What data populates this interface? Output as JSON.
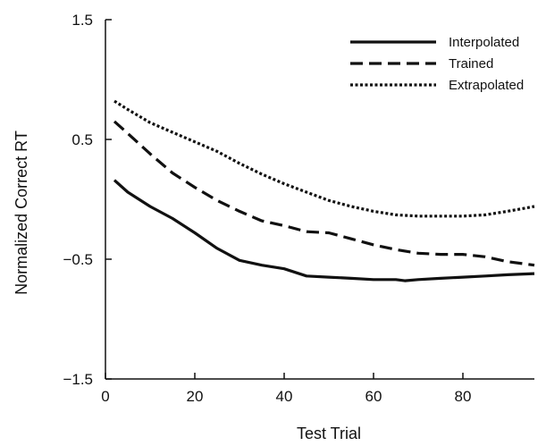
{
  "chart_data": {
    "type": "line",
    "title": "",
    "xlabel": "Test Trial",
    "ylabel": "Normalized Correct RT",
    "xlim": [
      0,
      96
    ],
    "ylim": [
      -1.5,
      1.5
    ],
    "xticks": [
      0,
      20,
      40,
      60,
      80
    ],
    "xtick_labels": [
      "0",
      "20",
      "40",
      "60",
      "80"
    ],
    "yticks": [
      -1.5,
      -0.5,
      0.5,
      1.5
    ],
    "ytick_labels": [
      "−1.5",
      "−0.5",
      "0.5",
      "1.5"
    ],
    "grid": false,
    "legend_position": "top-right",
    "series": [
      {
        "name": "Interpolated",
        "line_style": "solid",
        "color": "#111111",
        "x": [
          2,
          5,
          10,
          15,
          20,
          25,
          30,
          35,
          40,
          45,
          50,
          55,
          60,
          65,
          67,
          70,
          75,
          80,
          85,
          90,
          96
        ],
        "y": [
          0.16,
          0.06,
          -0.06,
          -0.16,
          -0.28,
          -0.41,
          -0.51,
          -0.55,
          -0.58,
          -0.64,
          -0.65,
          -0.66,
          -0.67,
          -0.67,
          -0.68,
          -0.67,
          -0.66,
          -0.65,
          -0.64,
          -0.63,
          -0.62
        ]
      },
      {
        "name": "Trained",
        "line_style": "dashed",
        "color": "#111111",
        "x": [
          2,
          5,
          10,
          15,
          20,
          25,
          30,
          35,
          40,
          45,
          50,
          55,
          60,
          65,
          70,
          75,
          80,
          85,
          90,
          96
        ],
        "y": [
          0.65,
          0.55,
          0.38,
          0.22,
          0.1,
          -0.01,
          -0.1,
          -0.18,
          -0.22,
          -0.27,
          -0.28,
          -0.33,
          -0.38,
          -0.42,
          -0.45,
          -0.46,
          -0.46,
          -0.48,
          -0.52,
          -0.55
        ]
      },
      {
        "name": "Extrapolated",
        "line_style": "dotted",
        "color": "#111111",
        "x": [
          2,
          5,
          10,
          15,
          20,
          25,
          30,
          35,
          40,
          45,
          50,
          55,
          60,
          65,
          70,
          75,
          80,
          85,
          90,
          96
        ],
        "y": [
          0.82,
          0.75,
          0.64,
          0.56,
          0.48,
          0.4,
          0.3,
          0.21,
          0.13,
          0.06,
          -0.01,
          -0.06,
          -0.1,
          -0.13,
          -0.14,
          -0.14,
          -0.14,
          -0.13,
          -0.1,
          -0.06
        ]
      }
    ]
  }
}
